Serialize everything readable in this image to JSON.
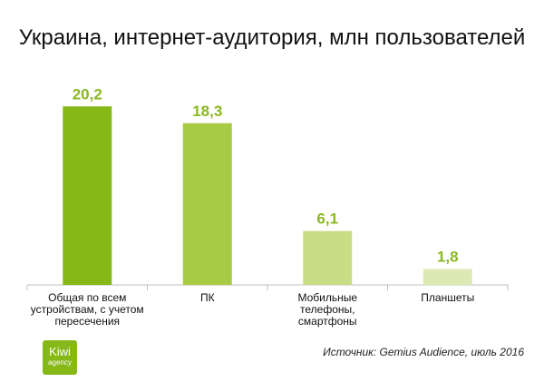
{
  "chart_data": {
    "type": "bar",
    "title": "Украина, интернет-аудитория, млн пользователей",
    "categories": [
      "Общая по всем устройствам, с учетом пересечения",
      "ПК",
      "Мобильные телефоны, смартфоны",
      "Планшеты"
    ],
    "category_lines": [
      [
        "Общая по всем",
        "устройствам, с учетом",
        "пересечения"
      ],
      [
        "ПК"
      ],
      [
        "Мобильные",
        "телефоны,",
        "смартфоны"
      ],
      [
        "Планшеты"
      ]
    ],
    "values": [
      20.2,
      18.3,
      6.1,
      1.8
    ],
    "value_labels": [
      "20,2",
      "18,3",
      "6,1",
      "1,8"
    ],
    "bar_colors": [
      "#86b817",
      "#a8cb45",
      "#c9dd86",
      "#dde9b5"
    ],
    "label_color": "#8ab81f",
    "ylim": [
      0,
      23
    ],
    "grid": false,
    "legend": "none"
  },
  "logo": {
    "line1": "Kiwi",
    "line2": "agency",
    "color": "#86b817"
  },
  "source": "Источник: Gemius Audience, июль 2016"
}
